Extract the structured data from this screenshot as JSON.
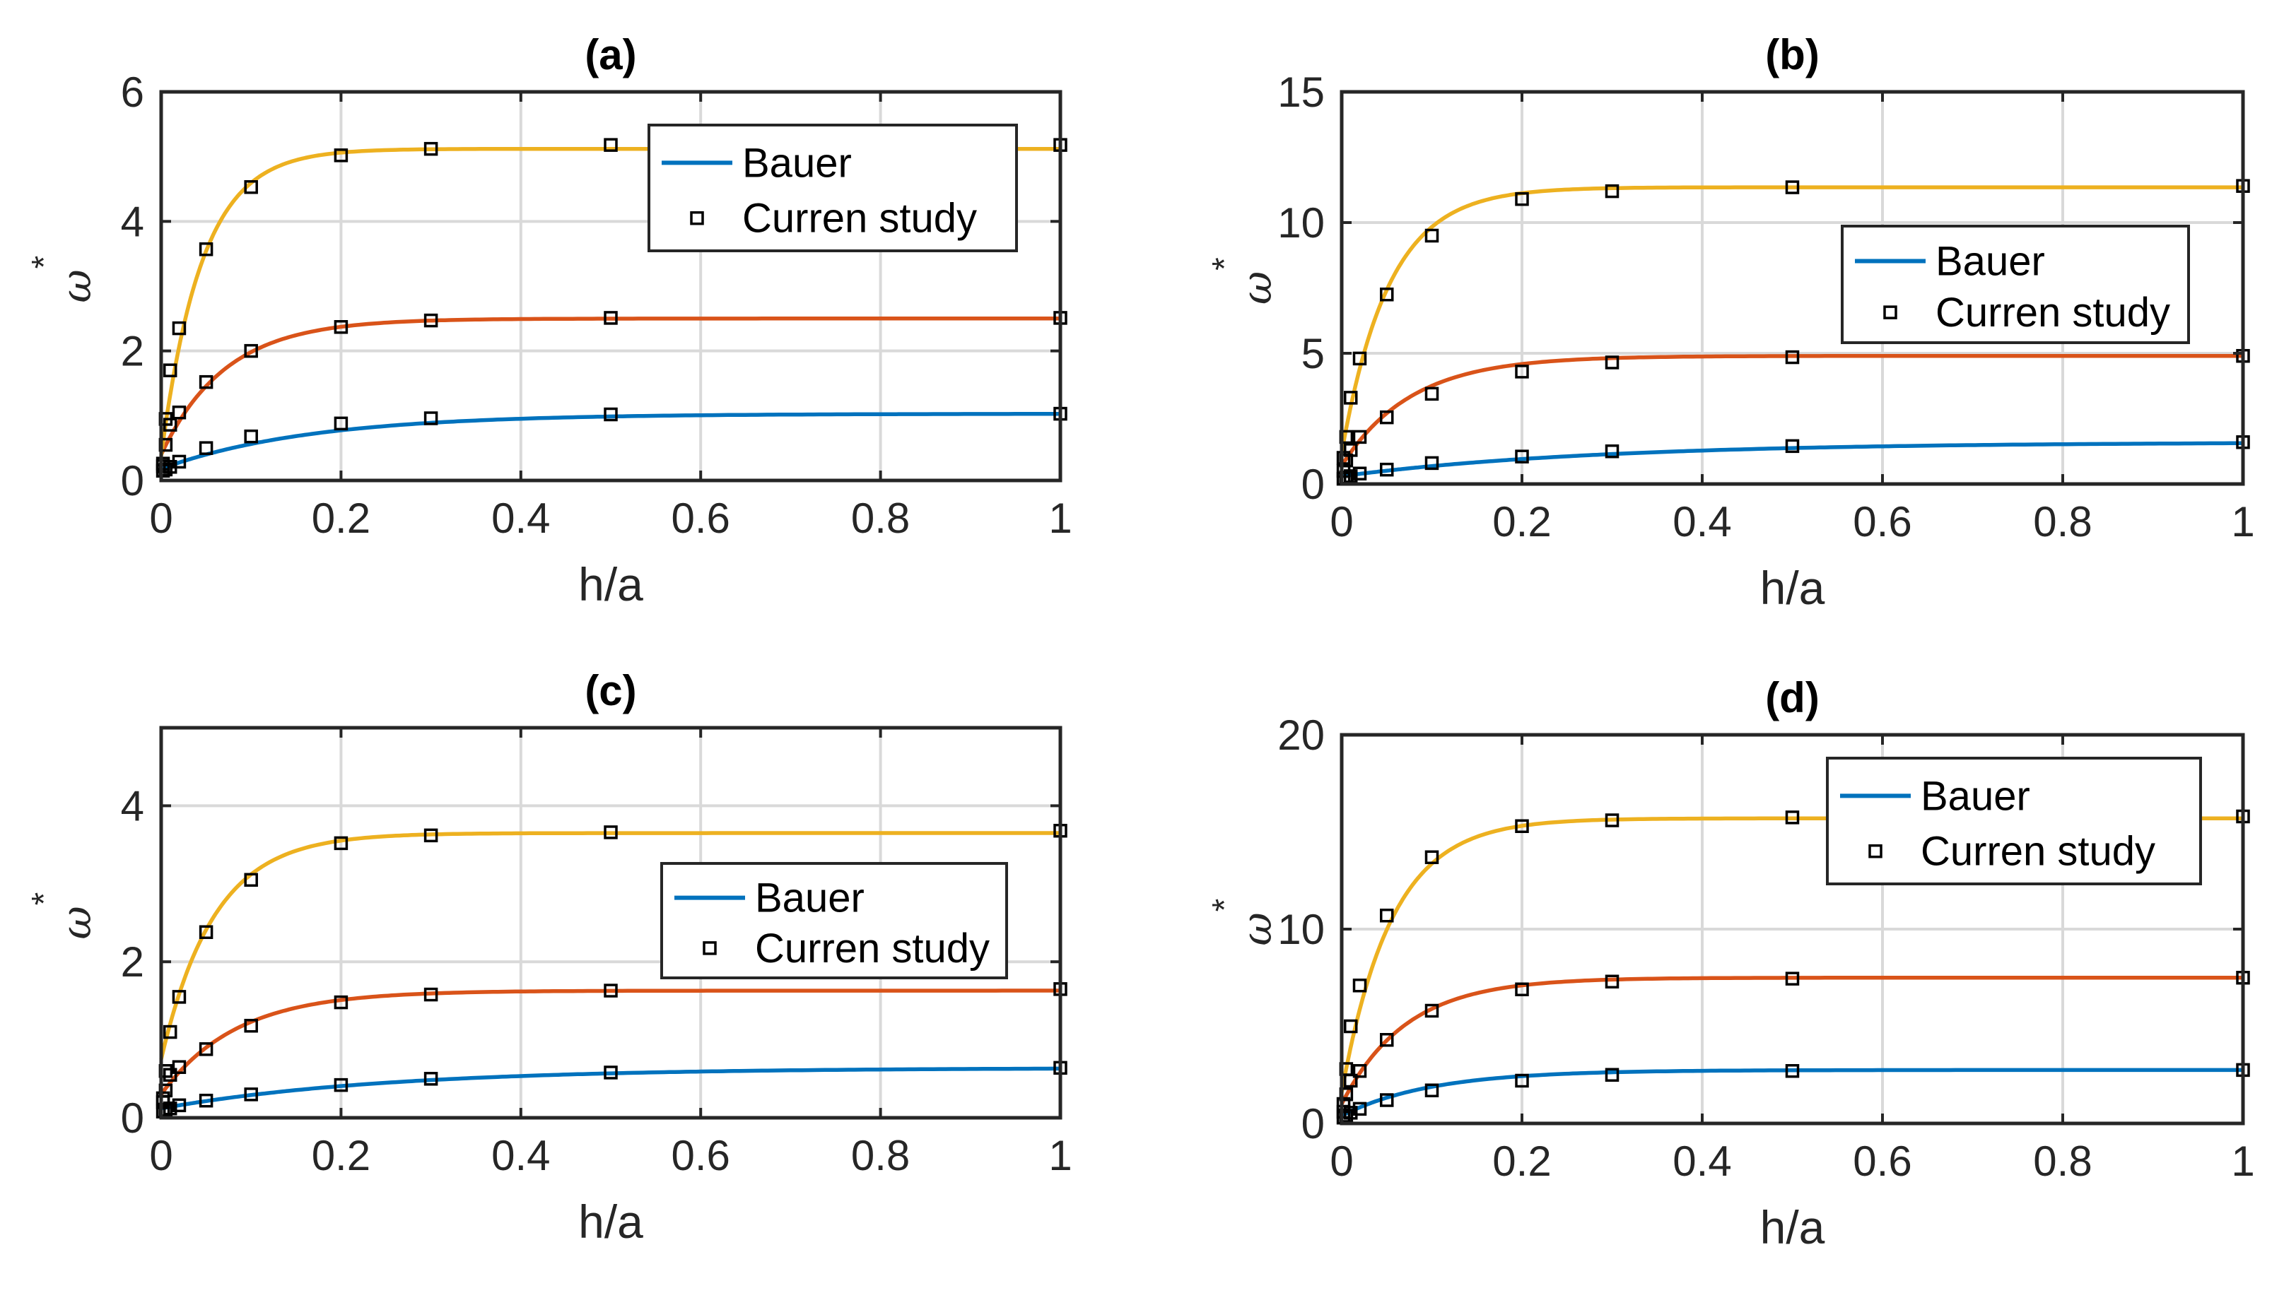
{
  "figure": {
    "description_label": "Four-panel comparison figure"
  },
  "colors": {
    "blue": "#0072BD",
    "orange": "#D95319",
    "yellow": "#EDB120",
    "axis": "#262626",
    "grid": "#d9d9d9",
    "marker": "#000000"
  },
  "chart_data": [
    {
      "type": "line",
      "panel": "a",
      "title": "(a)",
      "xlabel": "h/a",
      "ylabel": "ω",
      "ylabel_superscript": "*",
      "xlim": [
        0,
        1
      ],
      "ylim": [
        0,
        6
      ],
      "xticks": [
        0,
        0.2,
        0.4,
        0.6,
        0.8,
        1
      ],
      "xtick_labels": [
        "0",
        "0.2",
        "0.4",
        "0.6",
        "0.8",
        "1"
      ],
      "yticks": [
        0,
        2,
        4,
        6
      ],
      "ytick_labels": [
        "0",
        "2",
        "4",
        "6"
      ],
      "legend": {
        "position": "top-right",
        "entries": [
          "Bauer",
          "Curren study"
        ]
      },
      "grid": true,
      "series": [
        {
          "name": "Bauer",
          "color": "blue",
          "asymptote": 1.03,
          "h0": 0.18,
          "k": 6
        },
        {
          "name": "Bauer",
          "color": "orange",
          "asymptote": 2.5,
          "h0": 0.4,
          "k": 14
        },
        {
          "name": "Bauer",
          "color": "yellow",
          "asymptote": 5.12,
          "h0": 0.38,
          "k": 22
        }
      ],
      "markers": {
        "name": "Curren study",
        "x": [
          0.002,
          0.005,
          0.01,
          0.02,
          0.05,
          0.1,
          0.2,
          0.3,
          0.5,
          1
        ],
        "series_values": [
          [
            0.15,
            0.17,
            0.21,
            0.29,
            0.5,
            0.68,
            0.88,
            0.96,
            1.02,
            1.03
          ],
          [
            0.26,
            0.55,
            0.86,
            1.05,
            1.52,
            2.0,
            2.37,
            2.47,
            2.51,
            2.51
          ],
          [
            0.22,
            0.95,
            1.7,
            2.35,
            3.57,
            4.53,
            5.02,
            5.12,
            5.18,
            5.18
          ]
        ]
      }
    },
    {
      "type": "line",
      "panel": "b",
      "title": "(b)",
      "xlabel": "h/a",
      "ylabel": "ω",
      "ylabel_superscript": "*",
      "xlim": [
        0,
        1
      ],
      "ylim": [
        0,
        15
      ],
      "xticks": [
        0,
        0.2,
        0.4,
        0.6,
        0.8,
        1
      ],
      "xtick_labels": [
        "0",
        "0.2",
        "0.4",
        "0.6",
        "0.8",
        "1"
      ],
      "yticks": [
        0,
        5,
        10,
        15
      ],
      "ytick_labels": [
        "0",
        "5",
        "10",
        "15"
      ],
      "legend": {
        "position": "right-middle",
        "entries": [
          "Bauer",
          "Curren study"
        ]
      },
      "grid": true,
      "series": [
        {
          "name": "Bauer",
          "color": "blue",
          "asymptote": 1.6,
          "h0": 0.3,
          "k": 3.5
        },
        {
          "name": "Bauer",
          "color": "orange",
          "asymptote": 4.9,
          "h0": 0.7,
          "k": 13
        },
        {
          "name": "Bauer",
          "color": "yellow",
          "asymptote": 11.35,
          "h0": 1.2,
          "k": 19
        }
      ],
      "markers": {
        "name": "Curren study",
        "x": [
          0.002,
          0.005,
          0.01,
          0.02,
          0.05,
          0.1,
          0.2,
          0.3,
          0.5,
          1
        ],
        "series_values": [
          [
            0.2,
            0.25,
            0.3,
            0.4,
            0.55,
            0.8,
            1.05,
            1.25,
            1.45,
            1.6
          ],
          [
            0.5,
            0.9,
            1.3,
            1.8,
            2.55,
            3.45,
            4.3,
            4.65,
            4.85,
            4.9
          ],
          [
            1.0,
            1.8,
            3.3,
            4.8,
            7.25,
            9.5,
            10.9,
            11.2,
            11.35,
            11.4
          ]
        ]
      }
    },
    {
      "type": "line",
      "panel": "c",
      "title": "(c)",
      "xlabel": "h/a",
      "ylabel": "ω",
      "ylabel_superscript": "*",
      "xlim": [
        0,
        1
      ],
      "ylim": [
        0,
        5
      ],
      "xticks": [
        0,
        0.2,
        0.4,
        0.6,
        0.8,
        1
      ],
      "xtick_labels": [
        "0",
        "0.2",
        "0.4",
        "0.6",
        "0.8",
        "1"
      ],
      "yticks": [
        0,
        2,
        4
      ],
      "ytick_labels": [
        "0",
        "2",
        "4"
      ],
      "legend": {
        "position": "right-middle",
        "entries": [
          "Bauer",
          "Curren study"
        ]
      },
      "grid": true,
      "series": [
        {
          "name": "Bauer",
          "color": "blue",
          "asymptote": 0.64,
          "h0": 0.12,
          "k": 4
        },
        {
          "name": "Bauer",
          "color": "orange",
          "asymptote": 1.63,
          "h0": 0.3,
          "k": 12
        },
        {
          "name": "Bauer",
          "color": "yellow",
          "asymptote": 3.65,
          "h0": 0.75,
          "k": 17
        }
      ],
      "markers": {
        "name": "Curren study",
        "x": [
          0.002,
          0.005,
          0.01,
          0.02,
          0.05,
          0.1,
          0.2,
          0.3,
          0.5,
          1
        ],
        "series_values": [
          [
            0.08,
            0.1,
            0.12,
            0.16,
            0.22,
            0.3,
            0.42,
            0.5,
            0.58,
            0.64
          ],
          [
            0.2,
            0.35,
            0.55,
            0.65,
            0.88,
            1.18,
            1.48,
            1.58,
            1.63,
            1.65
          ],
          [
            0.25,
            0.6,
            1.1,
            1.55,
            2.38,
            3.05,
            3.52,
            3.62,
            3.66,
            3.68
          ]
        ]
      }
    },
    {
      "type": "line",
      "panel": "d",
      "title": "(d)",
      "xlabel": "h/a",
      "ylabel": "ω",
      "ylabel_superscript": "*",
      "xlim": [
        0,
        1
      ],
      "ylim": [
        0,
        20
      ],
      "xticks": [
        0,
        0.2,
        0.4,
        0.6,
        0.8,
        1
      ],
      "xtick_labels": [
        "0",
        "0.2",
        "0.4",
        "0.6",
        "0.8",
        "1"
      ],
      "yticks": [
        0,
        10,
        20
      ],
      "ytick_labels": [
        "0",
        "10",
        "20"
      ],
      "legend": {
        "position": "top-right",
        "entries": [
          "Bauer",
          "Curren study"
        ]
      },
      "grid": true,
      "series": [
        {
          "name": "Bauer",
          "color": "blue",
          "asymptote": 2.75,
          "h0": 0.4,
          "k": 10
        },
        {
          "name": "Bauer",
          "color": "orange",
          "asymptote": 7.5,
          "h0": 1.0,
          "k": 14
        },
        {
          "name": "Bauer",
          "color": "yellow",
          "asymptote": 15.7,
          "h0": 1.6,
          "k": 18
        }
      ],
      "markers": {
        "name": "Curren study",
        "x": [
          0.002,
          0.005,
          0.01,
          0.02,
          0.05,
          0.1,
          0.2,
          0.3,
          0.5,
          1
        ],
        "series_values": [
          [
            0.3,
            0.4,
            0.55,
            0.75,
            1.2,
            1.7,
            2.2,
            2.5,
            2.7,
            2.75
          ],
          [
            0.6,
            1.5,
            2.2,
            2.7,
            4.3,
            5.8,
            6.9,
            7.3,
            7.45,
            7.5
          ],
          [
            1.0,
            2.8,
            5.0,
            7.1,
            10.7,
            13.7,
            15.3,
            15.6,
            15.75,
            15.8
          ]
        ]
      }
    }
  ]
}
